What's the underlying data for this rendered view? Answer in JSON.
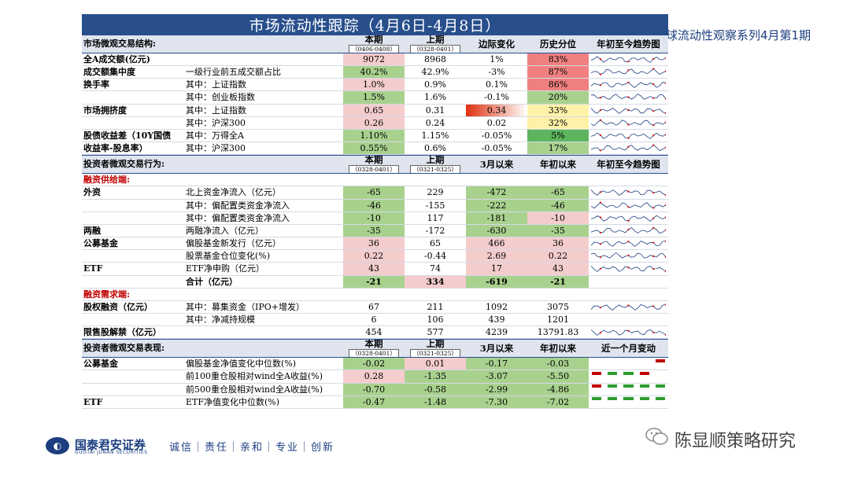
{
  "title": "市场流动性跟踪（4月6日-4月8日）",
  "side_text": "球流动性观察系列4月第1期",
  "section1": {
    "header": {
      "label": "市场微观交易结构:",
      "col3": "本期",
      "col3_sub": "（0406-0408）",
      "col4": "上期",
      "col4_sub": "（0328-0401）",
      "col5": "边际变化",
      "col6": "历史分位",
      "col7": "年初至今趋势图"
    },
    "rows": [
      {
        "c1": "全A成交额(亿元)",
        "c2": "",
        "c3": "9072",
        "c4": "8968",
        "c5": "1%",
        "c6": "83%"
      },
      {
        "c1": "成交额集中度",
        "c2": "一级行业前五成交额占比",
        "c3": "40.2%",
        "c4": "42.9%",
        "c5": "-3%",
        "c6": "87%"
      },
      {
        "c1": "换手率",
        "c2": "其中：上证指数",
        "c3": "1.0%",
        "c4": "0.9%",
        "c5": "0.1%",
        "c6": "86%"
      },
      {
        "c1": "",
        "c2": "其中：创业板指数",
        "c3": "1.5%",
        "c4": "1.6%",
        "c5": "-0.1%",
        "c6": "20%"
      },
      {
        "c1": "市场拥挤度",
        "c2": "其中：上证指数",
        "c3": "0.65",
        "c4": "0.31",
        "c5": "0.34",
        "c6": "33%"
      },
      {
        "c1": "",
        "c2": "其中：沪深300",
        "c3": "0.26",
        "c4": "0.24",
        "c5": "0.02",
        "c6": "32%"
      },
      {
        "c1": "股债收益差（10Y国债",
        "c2": "其中：万得全A",
        "c3": "1.10%",
        "c4": "1.15%",
        "c5": "-0.05%",
        "c6": "5%"
      },
      {
        "c1": "收益率-股息率）",
        "c2": "其中：沪深300",
        "c3": "0.55%",
        "c4": "0.6%",
        "c5": "-0.05%",
        "c6": "17%"
      }
    ]
  },
  "section2": {
    "header": {
      "label": "投资者微观交易行为:",
      "col3": "本期",
      "col3_sub": "（0328-0401）",
      "col4": "上期",
      "col4_sub": "（0321-0325）",
      "col5": "3月以来",
      "col6": "年初以来",
      "col7": "年初至今趋势图"
    },
    "supply_label": "融资供给端:",
    "supply_rows": [
      {
        "c1": "外资",
        "c2": "北上资金净流入（亿元）",
        "c3": "-65",
        "c4": "229",
        "c5": "-472",
        "c6": "-65"
      },
      {
        "c1": "",
        "c2": "其中：偏配置类资金净流入",
        "c3": "-46",
        "c4": "-155",
        "c5": "-222",
        "c6": "-46"
      },
      {
        "c1": "",
        "c2": "其中：偏配置类资金净流入",
        "c3": "-10",
        "c4": "117",
        "c5": "-181",
        "c6": "-10"
      },
      {
        "c1": "两融",
        "c2": "两融净流入（亿元）",
        "c3": "-35",
        "c4": "-172",
        "c5": "-630",
        "c6": "-35"
      },
      {
        "c1": "公募基金",
        "c2": "偏股基金新发行（亿元）",
        "c3": "36",
        "c4": "65",
        "c5": "466",
        "c6": "36"
      },
      {
        "c1": "",
        "c2": "股票基金仓位变化(%)",
        "c3": "0.22",
        "c4": "-0.44",
        "c5": "2.69",
        "c6": "0.22"
      },
      {
        "c1": "ETF",
        "c2": "ETF净申购（亿元）",
        "c3": "43",
        "c4": "74",
        "c5": "17",
        "c6": "43"
      },
      {
        "c1": "",
        "c2": "合计（亿元）",
        "c3": "-21",
        "c4": "334",
        "c5": "-619",
        "c6": "-21"
      }
    ],
    "demand_label": "融资需求端:",
    "demand_rows": [
      {
        "c1": "股权融资（亿元）",
        "c2": "其中：募集资金（IPO+增发）",
        "c3": "67",
        "c4": "211",
        "c5": "1092",
        "c6": "3075"
      },
      {
        "c1": "",
        "c2": "其中：净减持规模",
        "c3": "6",
        "c4": "106",
        "c5": "439",
        "c6": "1201"
      },
      {
        "c1": "限售股解禁（亿元）",
        "c2": "",
        "c3": "454",
        "c4": "577",
        "c5": "4239",
        "c6": "13791.83"
      }
    ]
  },
  "section3": {
    "header": {
      "label": "投资者微观交易表现:",
      "col3": "本期",
      "col3_sub": "（0328-0401）",
      "col4": "上期",
      "col4_sub": "（0321-0325）",
      "col5": "3月以来",
      "col6": "年初以来",
      "col7": "近一个月变动"
    },
    "rows": [
      {
        "c1": "公募基金",
        "c2": "偏股基金净值变化中位数(%)",
        "c3": "-0.02",
        "c4": "0.01",
        "c5": "-0.17",
        "c6": "-0.03"
      },
      {
        "c1": "",
        "c2": "前100重仓股相对wind全A收益(%)",
        "c3": "0.28",
        "c4": "-1.35",
        "c5": "-3.07",
        "c6": "-5.50"
      },
      {
        "c1": "",
        "c2": "前500重仓股相对wind全A收益(%)",
        "c3": "-0.70",
        "c4": "-0.58",
        "c5": "-2.99",
        "c6": "-4.86"
      },
      {
        "c1": "ETF",
        "c2": "ETF净值变化中位数(%)",
        "c3": "-0.47",
        "c4": "-1.48",
        "c5": "-7.30",
        "c6": "-7.02"
      }
    ]
  },
  "footer": {
    "logo_mark": "◐",
    "logo_name": "国泰君安证券",
    "logo_eng": "GUOTAI JUNAN SECURITIES",
    "motto": "诚信｜责任｜亲和｜专业｜创新",
    "wechat": "陈显顺策略研究"
  },
  "colors": {
    "banner": "#284f8c",
    "header_bg": "#dfe4ef",
    "red_cell": "#f4cccc",
    "green_cell": "#a9d18e",
    "accent_red": "#c00000"
  }
}
